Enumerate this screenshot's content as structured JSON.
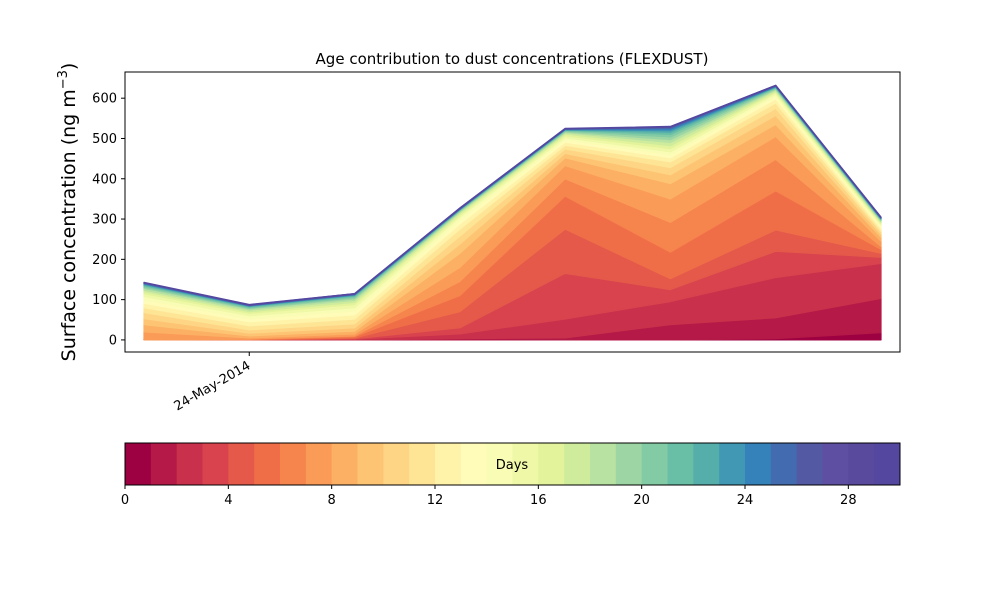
{
  "chart_data": {
    "type": "area",
    "title": "Age contribution to dust concentrations (FLEXDUST)",
    "ylabel": "Surface concentration (ng m",
    "ylabel_sup": "−3",
    "ylabel_close": ")",
    "xlabel": "",
    "ylim": [
      -30,
      665
    ],
    "yticks": [
      0,
      100,
      200,
      300,
      400,
      500,
      600
    ],
    "x": [
      0,
      1,
      2,
      3,
      4,
      5,
      6,
      7
    ],
    "xlim": [
      -0.18,
      7.18
    ],
    "xtick_labels": [
      {
        "x": 1,
        "label": "24-May-2014"
      }
    ],
    "stacked": true,
    "series_boundaries": [
      [
        0,
        0,
        0,
        0,
        0,
        0,
        3,
        18
      ],
      [
        0,
        0,
        0,
        3,
        5,
        38,
        55,
        103
      ],
      [
        0,
        0,
        2,
        15,
        52,
        95,
        155,
        190
      ],
      [
        0,
        0,
        3,
        30,
        165,
        125,
        220,
        205
      ],
      [
        0,
        0,
        5,
        70,
        275,
        152,
        273,
        215
      ],
      [
        0,
        1,
        8,
        110,
        357,
        218,
        370,
        225
      ],
      [
        0,
        2,
        10,
        145,
        400,
        292,
        448,
        232
      ],
      [
        20,
        5,
        15,
        180,
        433,
        350,
        505,
        245
      ],
      [
        38,
        10,
        22,
        215,
        452,
        388,
        535,
        255
      ],
      [
        53,
        17,
        30,
        238,
        463,
        410,
        557,
        262
      ],
      [
        68,
        25,
        40,
        258,
        474,
        428,
        575,
        268
      ],
      [
        80,
        35,
        52,
        275,
        483,
        442,
        588,
        273
      ],
      [
        91,
        45,
        62,
        288,
        491,
        452,
        598,
        278
      ],
      [
        100,
        53,
        72,
        298,
        497,
        460,
        605,
        282
      ],
      [
        108,
        60,
        80,
        305,
        502,
        467,
        610,
        286
      ],
      [
        115,
        66,
        88,
        310,
        507,
        475,
        614,
        289
      ],
      [
        120,
        70,
        93,
        314,
        511,
        482,
        617,
        292
      ],
      [
        124,
        74,
        98,
        317,
        514,
        490,
        620,
        294
      ],
      [
        128,
        77,
        102,
        319,
        516,
        497,
        622,
        296
      ],
      [
        131,
        79,
        105,
        321,
        518,
        504,
        624,
        298
      ],
      [
        134,
        81,
        108,
        322,
        520,
        510,
        626,
        299
      ],
      [
        136,
        83,
        110,
        323,
        521,
        515,
        627,
        300
      ],
      [
        138,
        84,
        111,
        324,
        522,
        519,
        628,
        301
      ],
      [
        139,
        85,
        112,
        325,
        522,
        522,
        629,
        302
      ],
      [
        140,
        85,
        113,
        325,
        523,
        525,
        630,
        302
      ],
      [
        141,
        86,
        113,
        326,
        523,
        527,
        630,
        303
      ],
      [
        141,
        86,
        114,
        326,
        524,
        528,
        631,
        303
      ],
      [
        142,
        87,
        114,
        327,
        524,
        529,
        631,
        304
      ],
      [
        142,
        87,
        115,
        327,
        524,
        529,
        632,
        304
      ],
      [
        143,
        88,
        115,
        328,
        525,
        530,
        632,
        305
      ]
    ],
    "colorbar": {
      "label": "Days",
      "min": 0,
      "max": 30,
      "ticks": [
        0,
        4,
        8,
        12,
        16,
        20,
        24,
        28
      ],
      "colors": [
        "#9e0142",
        "#b41947",
        "#c9304b",
        "#d8434e",
        "#e4594a",
        "#ef6e48",
        "#f6844d",
        "#fa9b58",
        "#fcb064",
        "#fdc474",
        "#fdd585",
        "#fee596",
        "#fff2a9",
        "#fffbb8",
        "#f9fcb4",
        "#eff8a6",
        "#e2f39b",
        "#cfec9d",
        "#b8e2a2",
        "#9dd6a4",
        "#82cba5",
        "#69bfa6",
        "#56aeab",
        "#4198b5",
        "#3581b9",
        "#436cb0",
        "#5359a3",
        "#5e4fa2",
        "#5a4a9e",
        "#5347a0"
      ]
    }
  }
}
